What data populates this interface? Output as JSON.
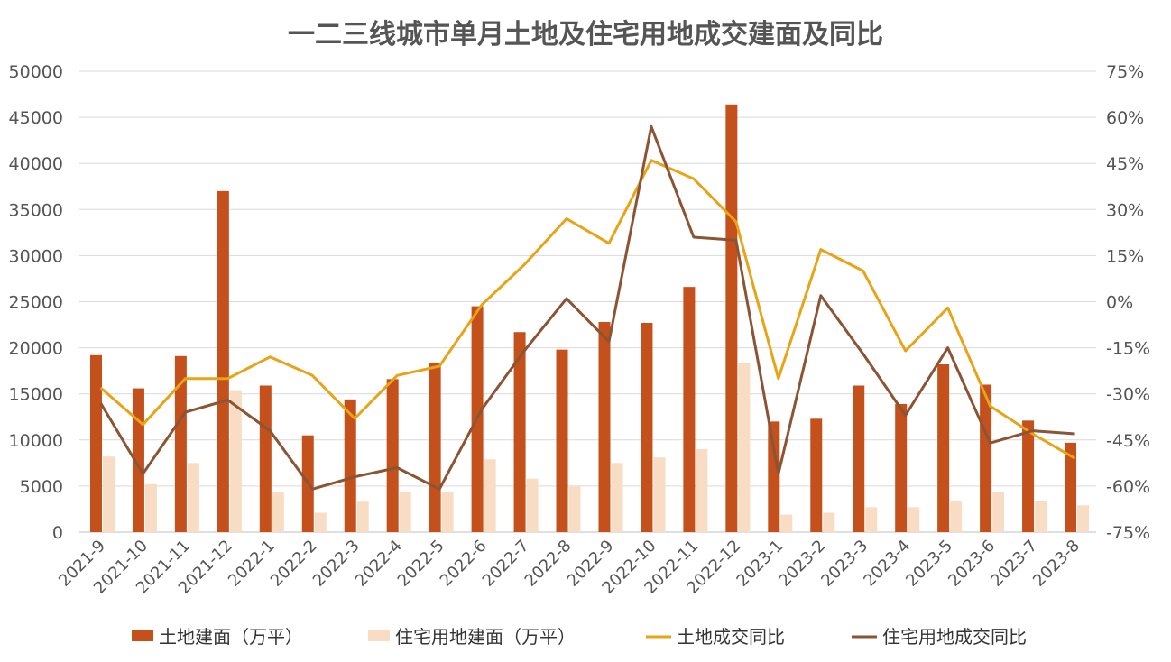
{
  "chart_data": {
    "type": "bar",
    "title": "一二三线城市单月土地及住宅用地成交建面及同比",
    "categories": [
      "2021-9",
      "2021-10",
      "2021-11",
      "2021-12",
      "2022-1",
      "2022-2",
      "2022-3",
      "2022-4",
      "2022-5",
      "2022-6",
      "2022-7",
      "2022-8",
      "2022-9",
      "2022-10",
      "2022-11",
      "2022-12",
      "2023-1",
      "2023-2",
      "2023-3",
      "2023-4",
      "2023-5",
      "2023-6",
      "2023-7",
      "2023-8"
    ],
    "y_left": {
      "min": 0,
      "max": 50000,
      "ticks": [
        "0",
        "5000",
        "10000",
        "15000",
        "20000",
        "25000",
        "30000",
        "35000",
        "40000",
        "45000",
        "50000"
      ]
    },
    "y_right": {
      "min": -75,
      "max": 75,
      "ticks": [
        "-75%",
        "-60%",
        "-45%",
        "-30%",
        "-15%",
        "0%",
        "15%",
        "30%",
        "45%",
        "60%",
        "75%"
      ]
    },
    "grid": true,
    "legend_position": "bottom",
    "series": [
      {
        "name": "土地建面（万平）",
        "type": "bar",
        "axis": "left",
        "color": "#C4501B",
        "values": [
          19200,
          15600,
          19100,
          37000,
          15900,
          10500,
          14400,
          16600,
          18400,
          24500,
          21700,
          19800,
          22800,
          22700,
          26600,
          46400,
          12000,
          12300,
          15900,
          13900,
          18200,
          16000,
          12100,
          9700
        ]
      },
      {
        "name": "住宅用地建面（万平）",
        "type": "bar",
        "axis": "left",
        "color": "#F8DCC4",
        "values": [
          8200,
          5200,
          7500,
          15400,
          4300,
          2100,
          3300,
          4300,
          4300,
          7900,
          5800,
          5000,
          7500,
          8100,
          9000,
          18300,
          1900,
          2100,
          2700,
          2700,
          3400,
          4300,
          3400,
          2900
        ]
      },
      {
        "name": "土地成交同比",
        "type": "line",
        "axis": "right",
        "color": "#E8A317",
        "values": [
          -28,
          -40,
          -25,
          -25,
          -18,
          -24,
          -38,
          -24,
          -21,
          -1,
          12,
          27,
          19,
          46,
          40,
          26,
          -25,
          17,
          10,
          -16,
          -2,
          -34,
          -43,
          -51
        ]
      },
      {
        "name": "住宅用地成交同比",
        "type": "line",
        "axis": "right",
        "color": "#8B5434",
        "values": [
          -33,
          -56,
          -36,
          -32,
          -42,
          -61,
          -57,
          -54,
          -61,
          -35,
          -16,
          1,
          -13,
          57,
          21,
          20,
          -56,
          2,
          -17,
          -37,
          -15,
          -46,
          -42,
          -43
        ]
      }
    ]
  }
}
